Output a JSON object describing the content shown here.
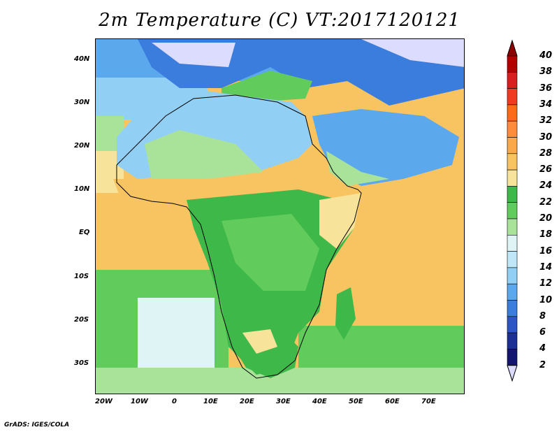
{
  "title": "2m Temperature (C) VT:2017120121",
  "credit": "GrADS: IGES/COLA",
  "chart_data": {
    "type": "heatmap",
    "title": "2m Temperature (C) VT:2017120121",
    "x_tick_labels": [
      "20W",
      "10W",
      "0",
      "10E",
      "20E",
      "30E",
      "40E",
      "50E",
      "60E",
      "70E"
    ],
    "y_tick_labels": [
      "40N",
      "30N",
      "20N",
      "10N",
      "EQ",
      "10S",
      "20S",
      "30S"
    ],
    "colorbar": {
      "levels": [
        40,
        38,
        36,
        34,
        32,
        30,
        28,
        26,
        24,
        22,
        20,
        18,
        16,
        14,
        12,
        10,
        8,
        6,
        4,
        2
      ],
      "colors": [
        "#8b0000",
        "#b30000",
        "#d81e1e",
        "#f03b20",
        "#fd6a1a",
        "#fd8d3c",
        "#f9a84a",
        "#f7c461",
        "#f7e39a",
        "#3fb84a",
        "#61cc5c",
        "#a9e39a",
        "#dff5f5",
        "#bfe7f7",
        "#91d0f4",
        "#5ba9ec",
        "#3b7ddc",
        "#2e55c4",
        "#1d2e94",
        "#13156e",
        "#dcdcff"
      ]
    },
    "grid": false
  }
}
